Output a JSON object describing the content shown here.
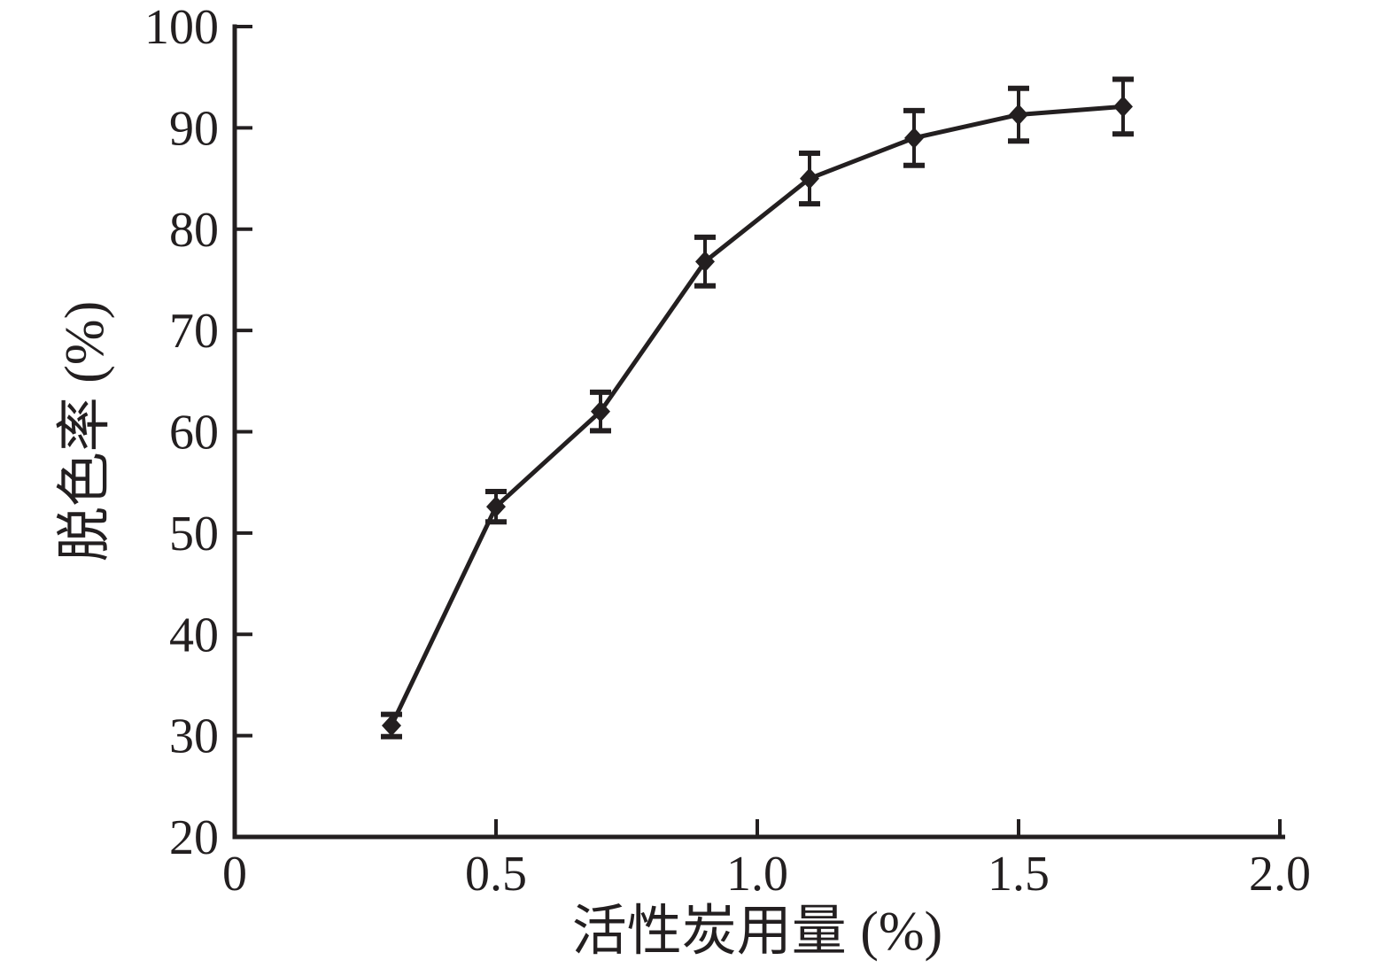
{
  "chart_data": {
    "type": "line",
    "title": "",
    "xlabel": "活性炭用量 (%)",
    "ylabel": "脱色率 (%)",
    "x": [
      0.3,
      0.5,
      0.7,
      0.9,
      1.1,
      1.3,
      1.5,
      1.7
    ],
    "y": [
      31,
      52.6,
      62,
      76.8,
      85,
      89,
      91.3,
      92.1
    ],
    "y_err": [
      1.1,
      1.5,
      1.9,
      2.4,
      2.5,
      2.7,
      2.6,
      2.7
    ],
    "xlim": [
      0,
      2.0
    ],
    "ylim": [
      20,
      100
    ],
    "x_ticks": [
      0,
      0.5,
      1.0,
      1.5,
      2.0
    ],
    "x_tick_labels": [
      "0",
      "0.5",
      "1.0",
      "1.5",
      "2.0"
    ],
    "y_ticks": [
      20,
      30,
      40,
      50,
      60,
      70,
      80,
      90,
      100
    ],
    "y_tick_labels": [
      "20",
      "30",
      "40",
      "50",
      "60",
      "70",
      "80",
      "90",
      "100"
    ],
    "grid": false,
    "legend": false,
    "marker": "diamond",
    "line_color": "#231f20",
    "background_color": "#ffffff"
  }
}
